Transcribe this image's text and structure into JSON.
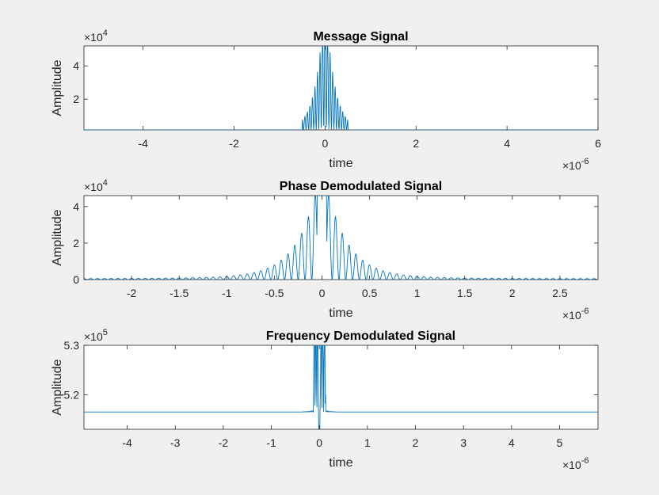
{
  "colors": {
    "line": "#0072bd",
    "background": "#f0f0f0",
    "axes_bg": "#ffffff"
  },
  "chart_data": [
    {
      "type": "line",
      "title": "Message Signal",
      "xlabel": "time",
      "ylabel": "Amplitude",
      "x_exponent_base": "×10",
      "x_exponent_power": "-6",
      "y_exponent_base": "×10",
      "y_exponent_power": "4",
      "xlim": [
        -5.3,
        6.0
      ],
      "ylim": [
        0.15,
        5.2
      ],
      "xticks": [
        -4,
        -2,
        0,
        2,
        4,
        6
      ],
      "xtick_labels": [
        "-4",
        "-2",
        "0",
        "2",
        "4",
        "6"
      ],
      "yticks": [
        2,
        4
      ],
      "ytick_labels": [
        "2",
        "4"
      ],
      "grid": false,
      "series": [
        {
          "x": [
            -0.45,
            -0.4,
            -0.35,
            -0.3,
            -0.25,
            -0.2,
            -0.15,
            -0.1,
            -0.05,
            0,
            0.05,
            0.1,
            0.15,
            0.2,
            0.25,
            0.3,
            0.35,
            0.4,
            0.45
          ],
          "values": [
            0.35,
            0.5,
            0.7,
            1.0,
            1.3,
            1.9,
            2.6,
            4.0,
            5.2,
            5.2,
            5.2,
            4.0,
            2.6,
            1.9,
            1.3,
            1.0,
            0.7,
            0.5,
            0.35
          ],
          "style": "sinc-oscillation",
          "oscillation_halfwidth": 0.5,
          "oscillations_per_unit": 18,
          "baseline": 0.15
        }
      ]
    },
    {
      "type": "line",
      "title": "Phase Demodulated Signal",
      "xlabel": "time",
      "ylabel": "Amplitude",
      "x_exponent_base": "×10",
      "x_exponent_power": "-6",
      "y_exponent_base": "×10",
      "y_exponent_power": "4",
      "xlim": [
        -2.5,
        2.9
      ],
      "ylim": [
        0,
        4.6
      ],
      "xticks": [
        -2,
        -1.5,
        -1,
        -0.5,
        0,
        0.5,
        1,
        1.5,
        2,
        2.5
      ],
      "xtick_labels": [
        "-2",
        "-1.5",
        "-1",
        "-0.5",
        "0",
        "0.5",
        "1",
        "1.5",
        "2",
        "2.5"
      ],
      "yticks": [
        0,
        2,
        4
      ],
      "ytick_labels": [
        "0",
        "2",
        "4"
      ],
      "grid": false,
      "series": [
        {
          "x": [
            -2.4,
            -1.5,
            -1.0,
            -0.5,
            -0.3,
            -0.2,
            -0.15,
            -0.1,
            -0.05,
            0,
            0.05,
            0.1,
            0.15,
            0.2,
            0.3,
            0.5,
            1.0,
            1.5,
            2.4
          ],
          "values": [
            0.08,
            0.12,
            0.2,
            0.45,
            1.2,
            3.3,
            2.8,
            4.6,
            4.6,
            4.6,
            4.6,
            4.6,
            2.8,
            3.3,
            1.2,
            0.45,
            0.2,
            0.12,
            0.08
          ],
          "style": "decaying-oscillation",
          "oscillations_per_unit": 14
        }
      ]
    },
    {
      "type": "line",
      "title": "Frequency Demodulated Signal",
      "xlabel": "time",
      "ylabel": "Amplitude",
      "x_exponent_base": "×10",
      "x_exponent_power": "-6",
      "y_exponent_base": "×10",
      "y_exponent_power": "5",
      "xlim": [
        -4.9,
        5.8
      ],
      "ylim": [
        5.13,
        5.3
      ],
      "xticks": [
        -4,
        -3,
        -2,
        -1,
        0,
        1,
        2,
        3,
        4,
        5
      ],
      "xtick_labels": [
        "-4",
        "-3",
        "-2",
        "-1",
        "0",
        "1",
        "2",
        "3",
        "4",
        "5"
      ],
      "yticks": [
        5.2,
        5.3
      ],
      "ytick_labels": [
        "5.2",
        "5.3"
      ],
      "grid": false,
      "series": [
        {
          "x": [
            -4.9,
            -0.3,
            -0.2,
            -0.1,
            -0.05,
            0,
            0.05,
            0.1,
            0.2,
            0.3,
            5.8
          ],
          "values": [
            5.165,
            5.166,
            5.17,
            5.3,
            5.3,
            5.13,
            5.3,
            5.3,
            5.17,
            5.166,
            5.165
          ],
          "style": "spike",
          "baseline": 5.165
        }
      ]
    }
  ]
}
